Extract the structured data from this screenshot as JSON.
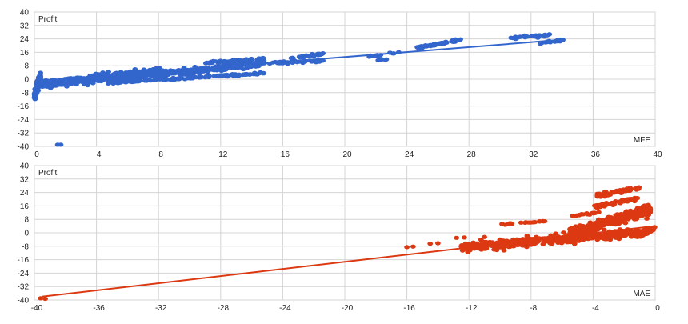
{
  "chart_data": [
    {
      "type": "scatter",
      "title": "",
      "xlabel": "MFE",
      "ylabel": "Profit",
      "xlim": [
        0,
        40
      ],
      "ylim": [
        -40,
        40
      ],
      "xticks": [
        "0",
        "4",
        "8",
        "12",
        "16",
        "20",
        "24",
        "28",
        "32",
        "36",
        "40"
      ],
      "yticks": [
        "40",
        "32",
        "24",
        "16",
        "8",
        "0",
        "-8",
        "-16",
        "-24",
        "-32",
        "-40"
      ],
      "grid": true,
      "point_color": "#3366cc",
      "trend_color": "#3366cc",
      "trendline": {
        "x": [
          0,
          34
        ],
        "y": [
          -1.5,
          23.5
        ]
      },
      "clusters": [
        {
          "x0": 0.0,
          "x1": 0.4,
          "y0": -10,
          "y1": 2,
          "n": 110,
          "spread": 3.0
        },
        {
          "x0": 0.3,
          "x1": 8.5,
          "y0": -3,
          "y1": 4.5,
          "n": 460,
          "spread": 2.6
        },
        {
          "x0": 8.0,
          "x1": 14.5,
          "y0": 3,
          "y1": 9,
          "n": 260,
          "spread": 1.8
        },
        {
          "x0": 11.0,
          "x1": 14.8,
          "y0": 10,
          "y1": 12,
          "n": 50,
          "spread": 0.8
        },
        {
          "x0": 5.0,
          "x1": 14.8,
          "y0": -2,
          "y1": 3.5,
          "n": 130,
          "spread": 0.7
        },
        {
          "x0": 12.0,
          "x1": 18.8,
          "y0": 8.5,
          "y1": 11,
          "n": 80,
          "spread": 0.8
        },
        {
          "x0": 16.5,
          "x1": 18.8,
          "y0": 12.5,
          "y1": 15.5,
          "n": 30,
          "spread": 0.8
        },
        {
          "x0": 21.5,
          "x1": 23.5,
          "y0": 13.5,
          "y1": 16,
          "n": 18,
          "spread": 0.6
        },
        {
          "x0": 22.0,
          "x1": 22.7,
          "y0": 11.0,
          "y1": 11.8,
          "n": 6,
          "spread": 0.3
        },
        {
          "x0": 24.5,
          "x1": 27.5,
          "y0": 18.5,
          "y1": 23.5,
          "n": 60,
          "spread": 0.8
        },
        {
          "x0": 30.5,
          "x1": 33.5,
          "y0": 24.5,
          "y1": 26.5,
          "n": 35,
          "spread": 0.6
        },
        {
          "x0": 32.5,
          "x1": 34.2,
          "y0": 21.5,
          "y1": 23.5,
          "n": 20,
          "spread": 0.5
        }
      ],
      "points": [
        [
          1.5,
          -39
        ],
        [
          1.7,
          -39
        ]
      ]
    },
    {
      "type": "scatter",
      "title": "",
      "xlabel": "MAE",
      "ylabel": "Profit",
      "xlim": [
        -40,
        0
      ],
      "ylim": [
        -40,
        40
      ],
      "xticks": [
        "-40",
        "-36",
        "-32",
        "-28",
        "-24",
        "-20",
        "-16",
        "-12",
        "-8",
        "-4",
        "0"
      ],
      "yticks": [
        "40",
        "32",
        "24",
        "16",
        "8",
        "0",
        "-8",
        "-16",
        "-24",
        "-32",
        "-40"
      ],
      "grid": true,
      "point_color": "#dc3912",
      "trend_color": "#dc3912",
      "trendline": {
        "x": [
          -39.5,
          0
        ],
        "y": [
          -38,
          4
        ]
      },
      "clusters": [
        {
          "x0": -12.5,
          "x1": -0.3,
          "y0": -9,
          "y1": 1,
          "n": 520,
          "spread": 2.5
        },
        {
          "x0": -5.5,
          "x1": -0.3,
          "y0": 0,
          "y1": 14,
          "n": 350,
          "spread": 3.0
        },
        {
          "x0": -4.0,
          "x1": -1.0,
          "y0": 15,
          "y1": 21,
          "n": 55,
          "spread": 1.2
        },
        {
          "x0": -3.8,
          "x1": -1.0,
          "y0": 22,
          "y1": 27,
          "n": 70,
          "spread": 1.2
        },
        {
          "x0": -10.0,
          "x1": -7.0,
          "y0": 5,
          "y1": 7,
          "n": 25,
          "spread": 0.5
        },
        {
          "x0": -5.5,
          "x1": -3.5,
          "y0": 10,
          "y1": 12,
          "n": 18,
          "spread": 0.5
        },
        {
          "x0": -1.0,
          "x1": 0.0,
          "y0": -2,
          "y1": 4,
          "n": 45,
          "spread": 1.5
        }
      ],
      "points": [
        [
          -39.6,
          -39
        ],
        [
          -39.3,
          -39.3
        ],
        [
          -16.0,
          -8.5
        ],
        [
          -15.6,
          -8.2
        ],
        [
          -14.5,
          -6.5
        ],
        [
          -14.0,
          -6.2
        ],
        [
          -12.8,
          -3.0
        ],
        [
          -12.3,
          -2.8
        ],
        [
          -11.0,
          -2.5
        ],
        [
          -10.0,
          -4.0
        ]
      ]
    }
  ]
}
